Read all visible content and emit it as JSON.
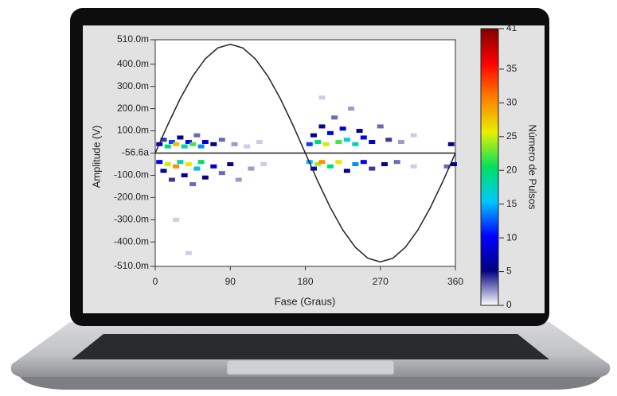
{
  "chart_data": {
    "type": "scatter",
    "x_label": "Fase (Graus)",
    "y_label": "Amplitude (V)",
    "colorbar_label": "Número de Pulsos",
    "xlim": [
      0,
      360
    ],
    "xticks": [
      0,
      90,
      180,
      270,
      360
    ],
    "ylim": [
      -0.51,
      0.51
    ],
    "yticks": [
      {
        "value": 0.51,
        "label": "510.0m"
      },
      {
        "value": 0.4,
        "label": "400.0m"
      },
      {
        "value": 0.3,
        "label": "300.0m"
      },
      {
        "value": 0.2,
        "label": "200.0m"
      },
      {
        "value": 0.1,
        "label": "100.0m"
      },
      {
        "value": -5.66e-17,
        "label": "-56.6a"
      },
      {
        "value": -0.1,
        "label": "-100.0m"
      },
      {
        "value": -0.2,
        "label": "-200.0m"
      },
      {
        "value": -0.3,
        "label": "-300.0m"
      },
      {
        "value": -0.4,
        "label": "-400.0m"
      },
      {
        "value": -0.51,
        "label": "-510.0m"
      }
    ],
    "clim": [
      0,
      41
    ],
    "cticks": [
      0,
      5,
      10,
      15,
      20,
      25,
      30,
      35,
      41
    ],
    "colormap": [
      "#ffffff",
      "#000080",
      "#0000ff",
      "#00c8ff",
      "#00e060",
      "#e8f000",
      "#ff8000",
      "#ff0000",
      "#800000"
    ],
    "curve": {
      "color": "#222222",
      "x": [
        0,
        15,
        30,
        45,
        60,
        75,
        90,
        105,
        120,
        135,
        150,
        165,
        180,
        195,
        210,
        225,
        240,
        255,
        270,
        285,
        300,
        315,
        330,
        345,
        360
      ],
      "values": [
        0,
        0.127,
        0.245,
        0.346,
        0.424,
        0.473,
        0.49,
        0.473,
        0.424,
        0.346,
        0.245,
        0.127,
        0,
        -0.127,
        -0.245,
        -0.346,
        -0.424,
        -0.473,
        -0.49,
        -0.473,
        -0.424,
        -0.346,
        -0.245,
        -0.127,
        0
      ]
    },
    "points": {
      "x": [
        5,
        10,
        15,
        20,
        25,
        30,
        35,
        40,
        45,
        50,
        55,
        60,
        70,
        80,
        95,
        110,
        125,
        5,
        10,
        15,
        20,
        25,
        30,
        35,
        40,
        45,
        50,
        55,
        60,
        70,
        80,
        90,
        100,
        115,
        130,
        25,
        40,
        185,
        190,
        195,
        200,
        205,
        210,
        215,
        220,
        225,
        230,
        235,
        240,
        245,
        250,
        260,
        270,
        280,
        295,
        310,
        200,
        185,
        190,
        195,
        200,
        210,
        220,
        230,
        240,
        250,
        260,
        275,
        290,
        310,
        355,
        358,
        350
      ],
      "y": [
        0.04,
        0.06,
        0.03,
        0.05,
        0.04,
        0.07,
        0.03,
        0.05,
        0.04,
        0.08,
        0.03,
        0.05,
        0.04,
        0.06,
        0.04,
        0.03,
        0.05,
        -0.04,
        -0.08,
        -0.05,
        -0.12,
        -0.06,
        -0.04,
        -0.1,
        -0.05,
        -0.14,
        -0.07,
        -0.04,
        -0.11,
        -0.06,
        -0.09,
        -0.05,
        -0.12,
        -0.07,
        -0.05,
        -0.3,
        -0.45,
        0.04,
        0.08,
        0.05,
        0.12,
        0.04,
        0.09,
        0.16,
        0.05,
        0.11,
        0.06,
        0.2,
        0.04,
        0.1,
        0.07,
        0.05,
        0.12,
        0.06,
        0.05,
        0.08,
        0.25,
        -0.04,
        -0.07,
        -0.05,
        -0.04,
        -0.06,
        -0.04,
        -0.08,
        -0.05,
        -0.04,
        -0.07,
        -0.05,
        -0.04,
        -0.06,
        0.04,
        -0.05,
        -0.06
      ],
      "values": [
        8,
        4,
        20,
        12,
        28,
        6,
        18,
        10,
        22,
        3,
        14,
        8,
        5,
        3,
        2,
        1,
        1,
        10,
        5,
        25,
        4,
        30,
        18,
        6,
        26,
        3,
        15,
        20,
        5,
        8,
        3,
        5,
        2,
        2,
        1,
        1,
        1,
        12,
        6,
        20,
        5,
        25,
        10,
        3,
        22,
        8,
        16,
        2,
        18,
        6,
        10,
        8,
        3,
        4,
        2,
        1,
        1,
        15,
        8,
        24,
        30,
        20,
        26,
        6,
        14,
        10,
        4,
        5,
        3,
        1,
        5,
        6,
        3
      ]
    }
  }
}
